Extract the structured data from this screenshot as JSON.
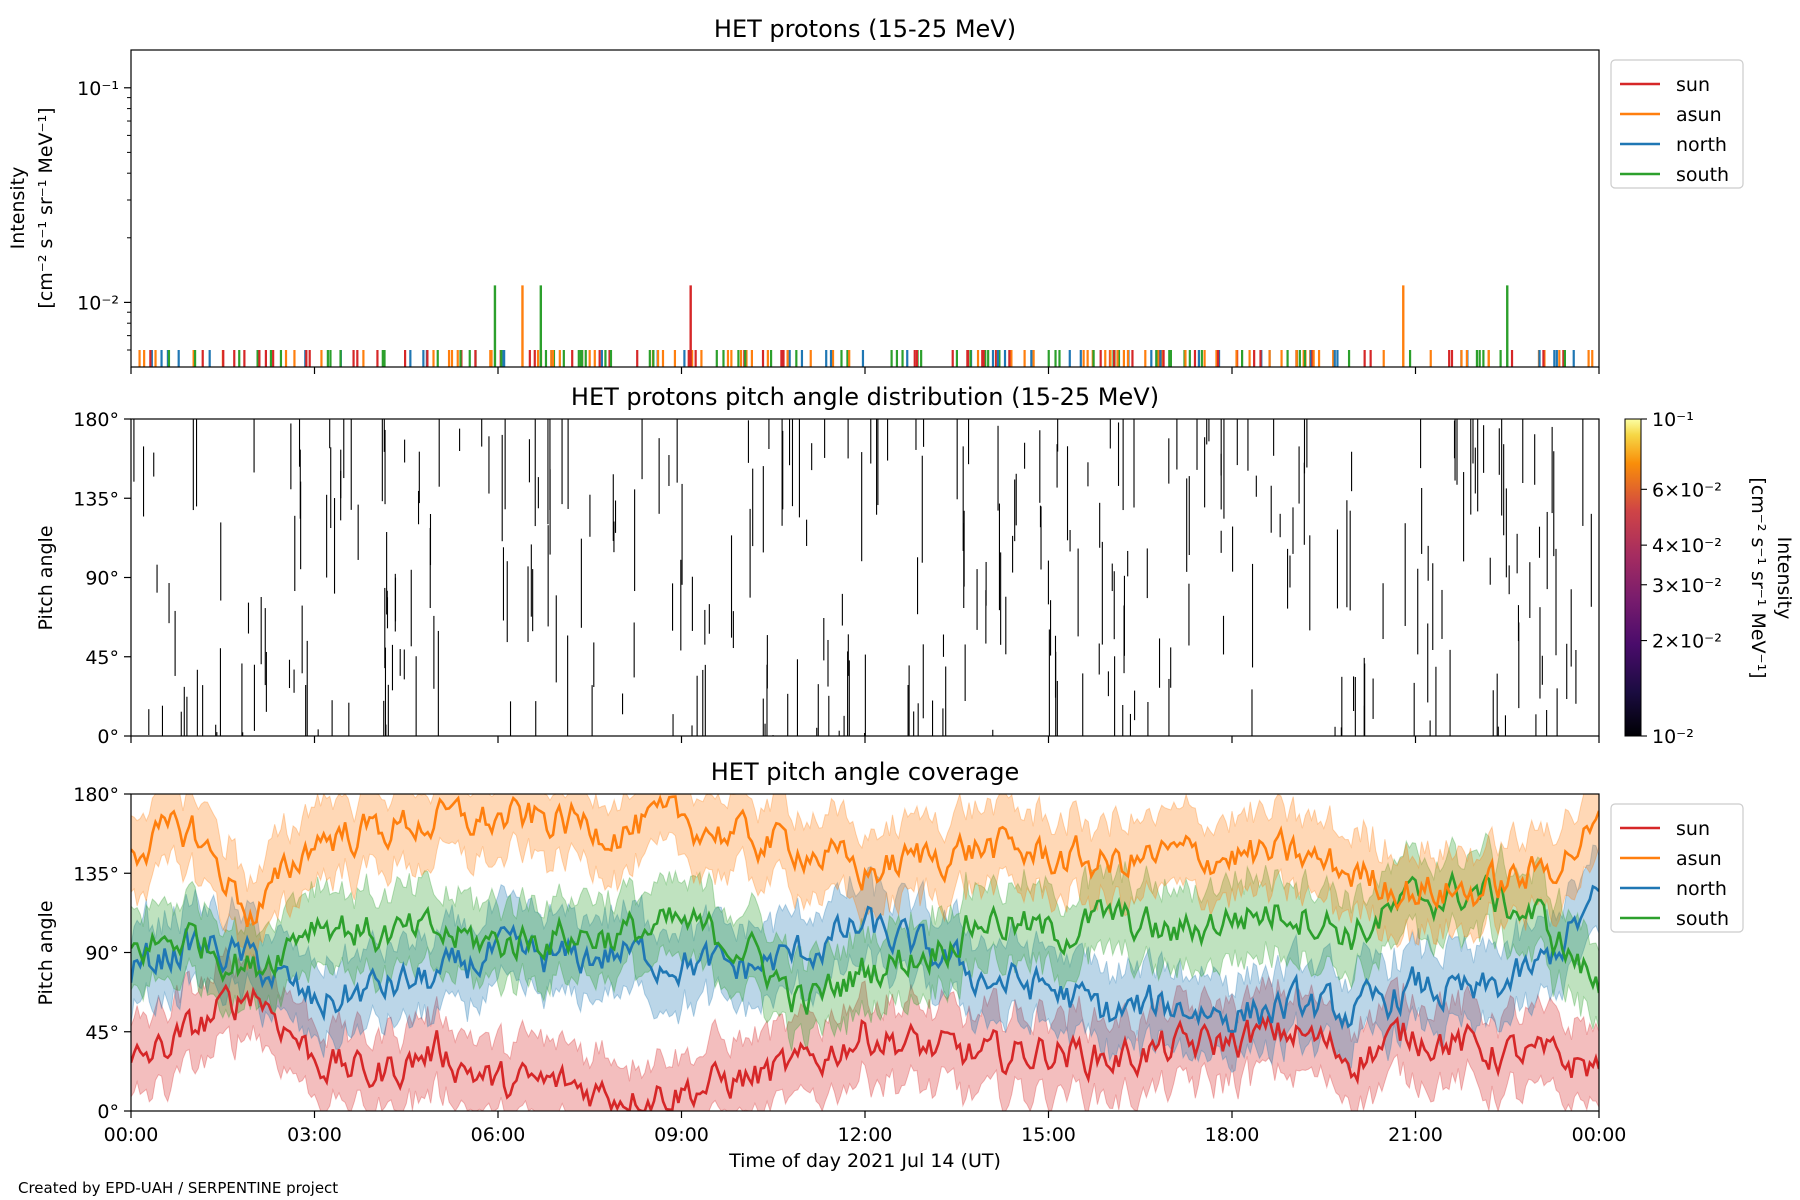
{
  "footer": {
    "credit": "Created by EPD-UAH / SERPENTINE project"
  },
  "xaxis": {
    "label": "Time of day 2021 Jul 14 (UT)",
    "ticks": [
      "00:00",
      "03:00",
      "06:00",
      "09:00",
      "12:00",
      "15:00",
      "18:00",
      "21:00",
      "00:00"
    ],
    "range_hours": [
      0,
      24
    ]
  },
  "colors": {
    "sun": "#d62728",
    "asun": "#ff7f0e",
    "north": "#1f77b4",
    "south": "#2ca02c"
  },
  "chart_data": [
    {
      "type": "line",
      "title": "HET protons (15-25 MeV)",
      "ylabel_lines": [
        "Intensity",
        "[cm⁻² s⁻¹ sr⁻¹ MeV⁻¹]"
      ],
      "yscale": "log",
      "ylim": [
        0.005,
        0.15
      ],
      "yticks": [
        {
          "value": 0.1,
          "label": "10⁻¹"
        },
        {
          "value": 0.01,
          "label": "10⁻²"
        }
      ],
      "legend": {
        "position": "top-right (outside)",
        "entries": [
          "sun",
          "asun",
          "north",
          "south"
        ]
      },
      "series": [
        {
          "name": "sun",
          "color": "#d62728",
          "spikes": [
            {
              "x": 9.15,
              "y": 0.012
            }
          ]
        },
        {
          "name": "asun",
          "color": "#ff7f0e",
          "spikes": [
            {
              "x": 6.4,
              "y": 0.012
            },
            {
              "x": 20.8,
              "y": 0.012
            }
          ]
        },
        {
          "name": "north",
          "color": "#1f77b4",
          "spikes": []
        },
        {
          "name": "south",
          "color": "#2ca02c",
          "spikes": [
            {
              "x": 5.95,
              "y": 0.012
            },
            {
              "x": 6.7,
              "y": 0.012
            },
            {
              "x": 22.5,
              "y": 0.012
            }
          ]
        }
      ],
      "baseline_level": 0.006
    },
    {
      "type": "heatmap",
      "title": "HET protons pitch angle distribution (15-25 MeV)",
      "ylabel": "Pitch angle",
      "ylim": [
        0,
        180
      ],
      "yticks": [
        "0°",
        "45°",
        "90°",
        "135°",
        "180°"
      ],
      "colorbar": {
        "label_lines": [
          "Intensity",
          "[cm⁻² s⁻¹ sr⁻¹ MeV⁻¹]"
        ],
        "scale": "log",
        "range": [
          0.01,
          0.1
        ],
        "ticks": [
          {
            "value": 0.1,
            "label": "10⁻¹"
          },
          {
            "value": 0.06,
            "label": "6×10⁻²"
          },
          {
            "value": 0.04,
            "label": "4×10⁻²"
          },
          {
            "value": 0.03,
            "label": "3×10⁻²"
          },
          {
            "value": 0.02,
            "label": "2×10⁻²"
          },
          {
            "value": 0.01,
            "label": "10⁻²"
          }
        ]
      }
    },
    {
      "type": "area",
      "title": "HET pitch angle coverage",
      "ylabel": "Pitch angle",
      "ylim": [
        0,
        180
      ],
      "yticks": [
        "0°",
        "45°",
        "90°",
        "135°",
        "180°"
      ],
      "legend": {
        "position": "top-right (outside)",
        "entries": [
          "sun",
          "asun",
          "north",
          "south"
        ]
      },
      "x_hours": [
        0,
        1,
        2,
        3,
        4,
        5,
        6,
        7,
        8,
        9,
        10,
        11,
        12,
        13,
        14,
        15,
        16,
        17,
        18,
        19,
        20,
        21,
        22,
        23,
        24
      ],
      "series": [
        {
          "name": "sun",
          "color": "#d62728",
          "values": [
            25,
            45,
            70,
            30,
            20,
            35,
            15,
            15,
            10,
            12,
            18,
            25,
            45,
            35,
            30,
            35,
            30,
            35,
            40,
            45,
            30,
            45,
            35,
            30,
            25
          ]
        },
        {
          "name": "asun",
          "color": "#ff7f0e",
          "values": [
            150,
            160,
            110,
            155,
            160,
            165,
            165,
            165,
            160,
            165,
            155,
            150,
            135,
            145,
            150,
            145,
            140,
            145,
            145,
            145,
            135,
            125,
            125,
            135,
            160
          ]
        },
        {
          "name": "north",
          "color": "#1f77b4",
          "values": [
            80,
            95,
            85,
            60,
            70,
            75,
            90,
            85,
            90,
            85,
            80,
            90,
            105,
            90,
            75,
            70,
            55,
            60,
            55,
            60,
            55,
            70,
            65,
            80,
            120
          ]
        },
        {
          "name": "south",
          "color": "#2ca02c",
          "values": [
            90,
            100,
            80,
            110,
            100,
            100,
            95,
            100,
            100,
            105,
            95,
            60,
            80,
            90,
            110,
            100,
            110,
            100,
            110,
            115,
            100,
            120,
            125,
            110,
            70
          ]
        }
      ],
      "band_halfwidth": 22
    }
  ]
}
